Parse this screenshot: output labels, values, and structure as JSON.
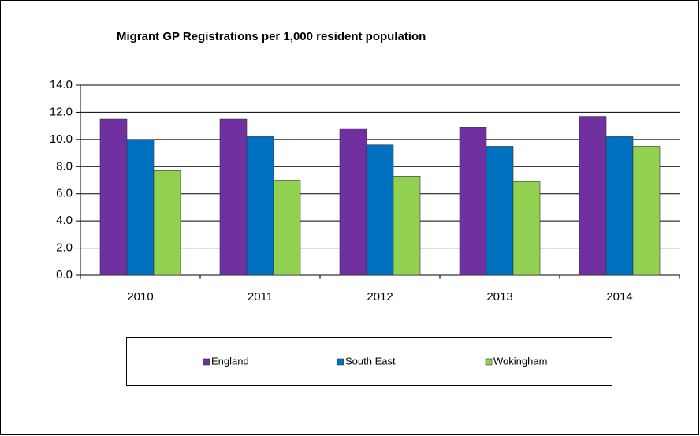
{
  "chart_data": {
    "type": "bar",
    "title": "Migrant GP Registrations per 1,000 resident population",
    "categories": [
      "2010",
      "2011",
      "2012",
      "2013",
      "2014"
    ],
    "series": [
      {
        "name": "England",
        "color": "#7030a0",
        "values": [
          11.5,
          11.5,
          10.8,
          10.9,
          11.7
        ]
      },
      {
        "name": "South East",
        "color": "#0070c0",
        "values": [
          10.0,
          10.2,
          9.6,
          9.5,
          10.2
        ]
      },
      {
        "name": "Wokingham",
        "color": "#92d050",
        "values": [
          7.7,
          7.0,
          7.3,
          6.9,
          9.5
        ]
      }
    ],
    "ylim": [
      0,
      14
    ],
    "yticks": [
      {
        "value": 0,
        "label": "0.0"
      },
      {
        "value": 2,
        "label": "2.0"
      },
      {
        "value": 4,
        "label": "4.0"
      },
      {
        "value": 6,
        "label": "6.0"
      },
      {
        "value": 8,
        "label": "8.0"
      },
      {
        "value": 10,
        "label": "10.0"
      },
      {
        "value": 12,
        "label": "12.0"
      },
      {
        "value": 14,
        "label": "14.0"
      }
    ],
    "grid": true,
    "legend": "bottom"
  }
}
